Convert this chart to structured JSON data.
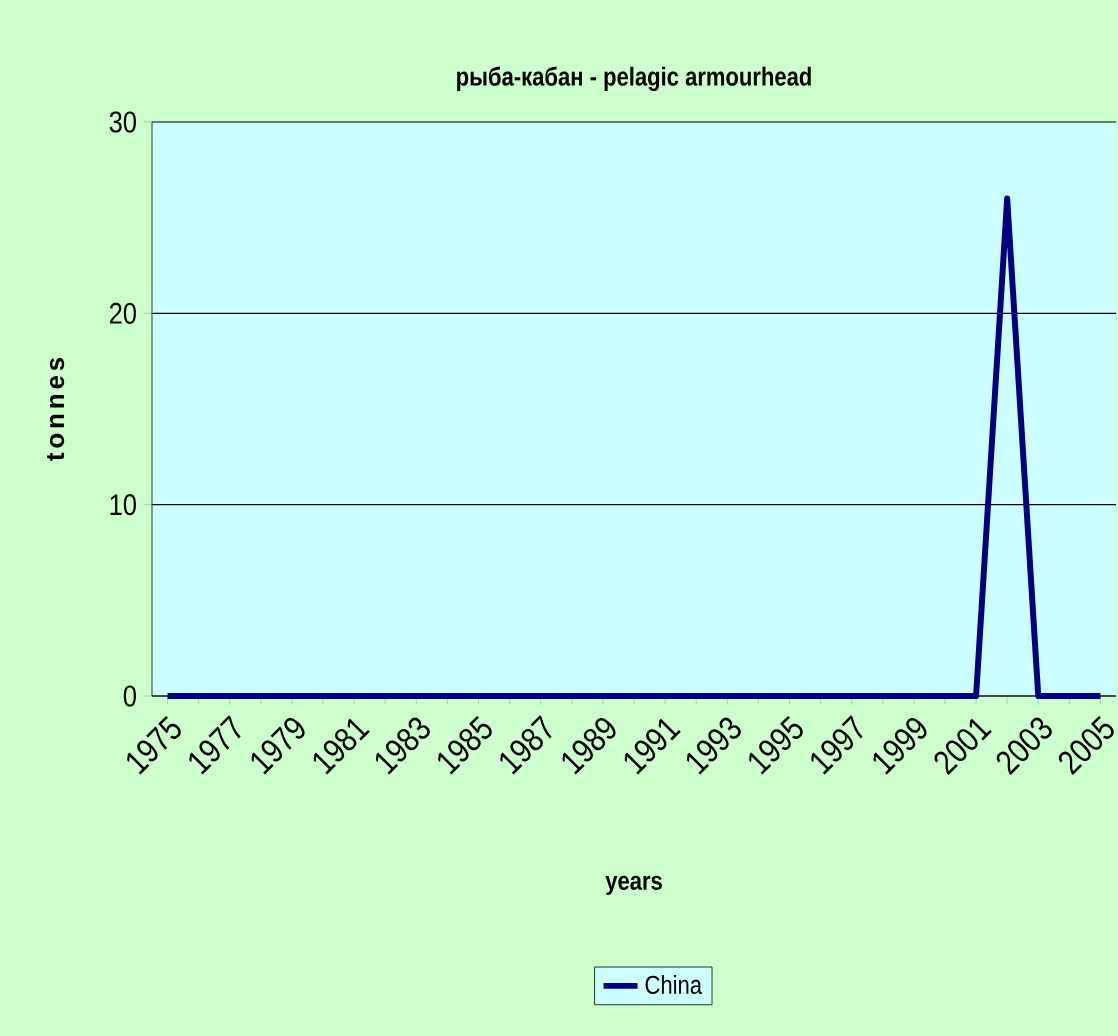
{
  "chart_data": {
    "type": "line",
    "title": "рыба-кабан - pelagic armourhead",
    "xlabel": "years",
    "ylabel": "tonnes",
    "categories": [
      "1975",
      null,
      "1977",
      null,
      "1979",
      null,
      "1981",
      null,
      "1983",
      null,
      "1985",
      null,
      "1987",
      null,
      "1989",
      null,
      "1991",
      null,
      "1993",
      null,
      "1995",
      null,
      "1997",
      null,
      "1999",
      null,
      "2001",
      null,
      "2003",
      null,
      "2005"
    ],
    "series": [
      {
        "name": "China",
        "color": "#000080",
        "values": [
          0,
          0,
          0,
          0,
          0,
          0,
          0,
          0,
          0,
          0,
          0,
          0,
          0,
          0,
          0,
          0,
          0,
          0,
          0,
          0,
          0,
          0,
          0,
          0,
          0,
          0,
          0,
          26,
          0,
          0,
          0
        ]
      }
    ],
    "ylim": [
      0,
      30
    ],
    "yticks": [
      0,
      10,
      20,
      30
    ],
    "grid": "y",
    "legend": "bottom"
  }
}
